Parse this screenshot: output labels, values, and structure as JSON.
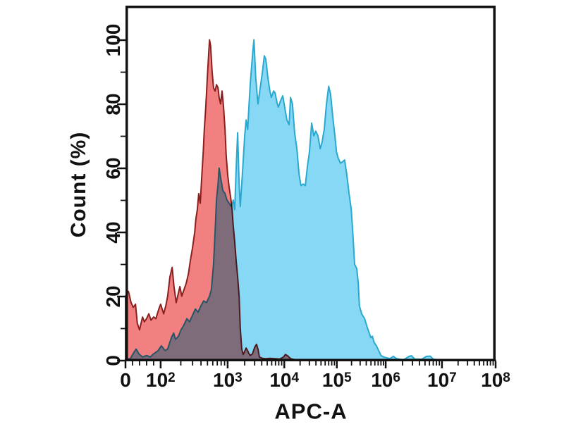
{
  "chart_data": {
    "type": "area",
    "subtype": "flow-cytometry-overlay-histogram",
    "title": "",
    "xlabel": "APC-A",
    "ylabel": "Count (%)",
    "ylim": [
      0,
      100
    ],
    "y_major_ticks": [
      0,
      20,
      40,
      60,
      80,
      100
    ],
    "y_minor_step": 10,
    "grid": false,
    "legend": "none",
    "background": "#FFFFFF",
    "axis_color": "#111111",
    "x_scale": "biexponential: linear 0..100 then log decades to 10^8",
    "points_format": "[fraction of x-axis width (0 = tick '0', 1 = tick 10^8), count %]",
    "x_ticks": [
      {
        "base": "0",
        "exp": "",
        "value": 0,
        "frac": 0.0
      },
      {
        "base": "10",
        "exp": "2",
        "value": 100,
        "frac": 0.095
      },
      {
        "base": "10",
        "exp": "3",
        "value": 1000,
        "frac": 0.276
      },
      {
        "base": "10",
        "exp": "4",
        "value": 10000,
        "frac": 0.429
      },
      {
        "base": "10",
        "exp": "5",
        "value": 100000,
        "frac": 0.571
      },
      {
        "base": "10",
        "exp": "6",
        "value": 1000000,
        "frac": 0.703
      },
      {
        "base": "10",
        "exp": "7",
        "value": 10000000,
        "frac": 0.855
      },
      {
        "base": "10",
        "exp": "8",
        "value": 100000000,
        "frac": 1.0
      }
    ],
    "series": [
      {
        "name": "blue-histogram",
        "fill": "#86D8F4",
        "stroke": "#29A9CF",
        "peak": {
          "apc_value": "~3e3",
          "count_pct": 100
        },
        "span": "main population between 10^3 and 10^6",
        "points": [
          [
            0.0,
            0.3
          ],
          [
            0.013,
            0.5
          ],
          [
            0.023,
            2.5
          ],
          [
            0.029,
            3.5
          ],
          [
            0.036,
            2
          ],
          [
            0.046,
            1
          ],
          [
            0.057,
            1.5
          ],
          [
            0.067,
            1
          ],
          [
            0.076,
            2
          ],
          [
            0.088,
            3
          ],
          [
            0.097,
            4.5
          ],
          [
            0.107,
            3
          ],
          [
            0.114,
            3.5
          ],
          [
            0.124,
            7
          ],
          [
            0.13,
            8.5
          ],
          [
            0.135,
            6.5
          ],
          [
            0.143,
            7.5
          ],
          [
            0.15,
            9.5
          ],
          [
            0.158,
            11
          ],
          [
            0.166,
            13
          ],
          [
            0.173,
            12
          ],
          [
            0.181,
            14
          ],
          [
            0.189,
            16
          ],
          [
            0.196,
            15
          ],
          [
            0.204,
            17
          ],
          [
            0.211,
            18.5
          ],
          [
            0.219,
            18
          ],
          [
            0.227,
            20
          ],
          [
            0.232,
            22
          ],
          [
            0.238,
            30
          ],
          [
            0.242,
            40
          ],
          [
            0.246,
            50
          ],
          [
            0.25,
            55
          ],
          [
            0.253,
            60
          ],
          [
            0.257,
            57
          ],
          [
            0.263,
            53
          ],
          [
            0.269,
            52
          ],
          [
            0.274,
            50
          ],
          [
            0.28,
            49
          ],
          [
            0.286,
            48
          ],
          [
            0.291,
            50
          ],
          [
            0.295,
            47
          ],
          [
            0.299,
            60
          ],
          [
            0.303,
            71
          ],
          [
            0.307,
            55
          ],
          [
            0.31,
            48
          ],
          [
            0.314,
            55
          ],
          [
            0.318,
            62
          ],
          [
            0.322,
            70
          ],
          [
            0.326,
            75
          ],
          [
            0.33,
            72
          ],
          [
            0.333,
            78
          ],
          [
            0.337,
            86
          ],
          [
            0.343,
            95
          ],
          [
            0.347,
            100
          ],
          [
            0.352,
            88
          ],
          [
            0.358,
            80
          ],
          [
            0.364,
            85
          ],
          [
            0.37,
            90
          ],
          [
            0.375,
            95
          ],
          [
            0.379,
            94
          ],
          [
            0.385,
            88
          ],
          [
            0.39,
            84
          ],
          [
            0.394,
            82
          ],
          [
            0.4,
            84
          ],
          [
            0.404,
            83.5
          ],
          [
            0.41,
            80
          ],
          [
            0.413,
            79
          ],
          [
            0.419,
            81
          ],
          [
            0.425,
            82.5
          ],
          [
            0.43,
            79
          ],
          [
            0.436,
            75
          ],
          [
            0.442,
            73.5
          ],
          [
            0.446,
            82
          ],
          [
            0.451,
            80
          ],
          [
            0.457,
            71
          ],
          [
            0.463,
            66
          ],
          [
            0.469,
            58
          ],
          [
            0.474,
            54.5
          ],
          [
            0.48,
            55
          ],
          [
            0.486,
            54.5
          ],
          [
            0.491,
            60
          ],
          [
            0.497,
            65
          ],
          [
            0.503,
            74
          ],
          [
            0.509,
            70
          ],
          [
            0.514,
            71.5
          ],
          [
            0.52,
            70
          ],
          [
            0.526,
            66
          ],
          [
            0.531,
            68
          ],
          [
            0.537,
            72
          ],
          [
            0.543,
            80
          ],
          [
            0.549,
            85.5
          ],
          [
            0.554,
            83
          ],
          [
            0.56,
            76
          ],
          [
            0.566,
            70
          ],
          [
            0.57,
            65
          ],
          [
            0.575,
            63
          ],
          [
            0.581,
            61.5
          ],
          [
            0.587,
            62
          ],
          [
            0.592,
            62.5
          ],
          [
            0.598,
            58
          ],
          [
            0.604,
            52
          ],
          [
            0.61,
            47
          ],
          [
            0.615,
            38
          ],
          [
            0.619,
            30
          ],
          [
            0.625,
            28.5
          ],
          [
            0.629,
            24
          ],
          [
            0.632,
            17
          ],
          [
            0.638,
            14.5
          ],
          [
            0.646,
            13
          ],
          [
            0.651,
            11
          ],
          [
            0.657,
            9
          ],
          [
            0.663,
            7
          ],
          [
            0.667,
            7.5
          ],
          [
            0.672,
            5.5
          ],
          [
            0.678,
            4.5
          ],
          [
            0.684,
            3
          ],
          [
            0.69,
            1.5
          ],
          [
            0.697,
            1
          ],
          [
            0.705,
            0.8
          ],
          [
            0.714,
            0.5
          ],
          [
            0.724,
            1.2
          ],
          [
            0.731,
            0.6
          ],
          [
            0.741,
            0.3
          ],
          [
            0.752,
            0.2
          ],
          [
            0.766,
            1.2
          ],
          [
            0.773,
            1.4
          ],
          [
            0.781,
            0.4
          ],
          [
            0.8,
            0.3
          ],
          [
            0.813,
            1.2
          ],
          [
            0.823,
            1.3
          ],
          [
            0.832,
            0.3
          ],
          [
            0.851,
            0.1
          ],
          [
            0.889,
            0
          ],
          [
            1.0,
            0
          ]
        ]
      },
      {
        "name": "red-histogram",
        "fill": "#F28080",
        "stroke": "#8A1F1F",
        "blend": "multiply",
        "peak": {
          "apc_value": "~5e2",
          "count_pct": 100
        },
        "span": "population between 0 and ~3e3",
        "points": [
          [
            0.0,
            20
          ],
          [
            0.008,
            21.5
          ],
          [
            0.015,
            18
          ],
          [
            0.021,
            16.5
          ],
          [
            0.027,
            17.5
          ],
          [
            0.032,
            11.5
          ],
          [
            0.038,
            9.5
          ],
          [
            0.046,
            13.5
          ],
          [
            0.051,
            12
          ],
          [
            0.057,
            13
          ],
          [
            0.063,
            14.5
          ],
          [
            0.069,
            12.5
          ],
          [
            0.076,
            13.5
          ],
          [
            0.082,
            13
          ],
          [
            0.09,
            16
          ],
          [
            0.095,
            17.5
          ],
          [
            0.103,
            14.5
          ],
          [
            0.109,
            17
          ],
          [
            0.114,
            20
          ],
          [
            0.12,
            26
          ],
          [
            0.126,
            29
          ],
          [
            0.131,
            23
          ],
          [
            0.137,
            18
          ],
          [
            0.143,
            21
          ],
          [
            0.147,
            23
          ],
          [
            0.152,
            20
          ],
          [
            0.158,
            22
          ],
          [
            0.164,
            24
          ],
          [
            0.17,
            27
          ],
          [
            0.175,
            31
          ],
          [
            0.181,
            35
          ],
          [
            0.187,
            40
          ],
          [
            0.19,
            44
          ],
          [
            0.194,
            47
          ],
          [
            0.198,
            52
          ],
          [
            0.202,
            49
          ],
          [
            0.206,
            57
          ],
          [
            0.21,
            65
          ],
          [
            0.213,
            72
          ],
          [
            0.217,
            79
          ],
          [
            0.221,
            88
          ],
          [
            0.225,
            96
          ],
          [
            0.227,
            100
          ],
          [
            0.23,
            98
          ],
          [
            0.234,
            90
          ],
          [
            0.238,
            85
          ],
          [
            0.242,
            84
          ],
          [
            0.246,
            86
          ],
          [
            0.25,
            85
          ],
          [
            0.253,
            82
          ],
          [
            0.257,
            80
          ],
          [
            0.261,
            84
          ],
          [
            0.265,
            79
          ],
          [
            0.269,
            72
          ],
          [
            0.272,
            64
          ],
          [
            0.276,
            58
          ],
          [
            0.28,
            54
          ],
          [
            0.284,
            51
          ],
          [
            0.288,
            47
          ],
          [
            0.291,
            42
          ],
          [
            0.295,
            37
          ],
          [
            0.299,
            31
          ],
          [
            0.303,
            26
          ],
          [
            0.307,
            20
          ],
          [
            0.31,
            10
          ],
          [
            0.314,
            3.5
          ],
          [
            0.318,
            1.8
          ],
          [
            0.322,
            2.8
          ],
          [
            0.326,
            3.8
          ],
          [
            0.33,
            3
          ],
          [
            0.333,
            2.2
          ],
          [
            0.337,
            1.5
          ],
          [
            0.343,
            2
          ],
          [
            0.349,
            4
          ],
          [
            0.354,
            5
          ],
          [
            0.358,
            3.5
          ],
          [
            0.362,
            1
          ],
          [
            0.37,
            0.6
          ],
          [
            0.379,
            0.5
          ],
          [
            0.39,
            0.6
          ],
          [
            0.404,
            0.5
          ],
          [
            0.417,
            0.4
          ],
          [
            0.427,
            1
          ],
          [
            0.432,
            1.8
          ],
          [
            0.438,
            1.4
          ],
          [
            0.446,
            0.5
          ],
          [
            0.457,
            0.2
          ],
          [
            0.48,
            0.1
          ],
          [
            0.518,
            0
          ],
          [
            1.0,
            0
          ]
        ]
      }
    ]
  }
}
